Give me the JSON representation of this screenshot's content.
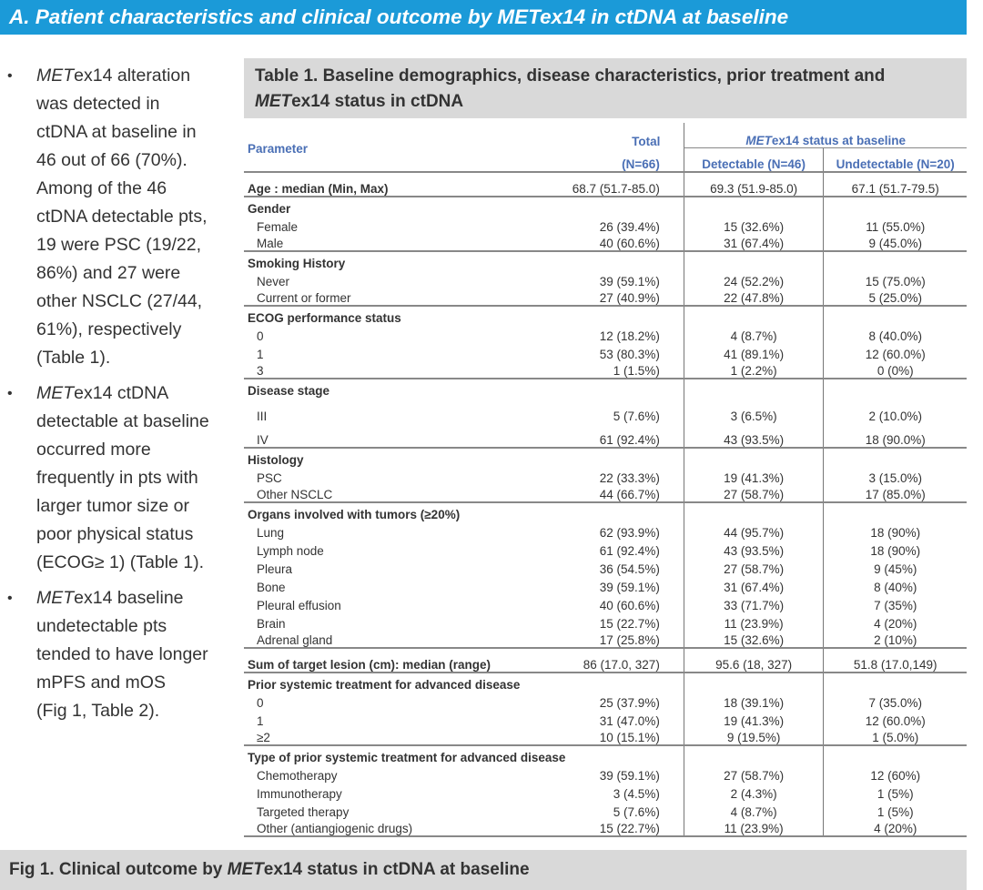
{
  "banner": {
    "title": "A. Patient characteristics and clinical outcome by METex14 in ctDNA at baseline"
  },
  "bullets": [
    {
      "italic": "MET",
      "lines": [
        "ex14 alteration",
        "was detected in",
        "ctDNA at baseline in",
        "46 out of 66 (70%).",
        "Among of the 46",
        "ctDNA detectable pts,",
        "19 were PSC (19/22,",
        "86%) and 27 were",
        "other NSCLC (27/44,",
        "61%), respectively",
        "(Table 1)."
      ]
    },
    {
      "italic": "MET",
      "lines": [
        "ex14 ctDNA",
        "detectable at baseline",
        "occurred more",
        "frequently in pts with",
        "larger tumor size or",
        "poor physical status",
        "(ECOG≥ 1) (Table 1)."
      ]
    },
    {
      "italic": "MET",
      "lines": [
        "ex14 baseline",
        "undetectable pts",
        "tended to have longer",
        "mPFS and mOS",
        "(Fig 1, Table 2)."
      ]
    }
  ],
  "table_title": {
    "before": "Table 1. Baseline demographics, disease characteristics, prior treatment and ",
    "italic": "MET",
    "after": "ex14 status in ctDNA"
  },
  "table_header": {
    "parameter": "Parameter",
    "total": "Total",
    "total_n": "(N=66)",
    "group_italic": "MET",
    "group": "ex14 status at baseline",
    "detectable": "Detectable (N=46)",
    "undetectable": "Undetectable (N=20)"
  },
  "table_sections": [
    {
      "title": "Age : median (Min, Max)",
      "values": [
        "68.7 (51.7-85.0)",
        "69.3 (51.9-85.0)",
        "67.1 (51.7-79.5)"
      ],
      "rows": []
    },
    {
      "title": "Gender",
      "rows": [
        [
          "Female",
          "26 (39.4%)",
          "15 (32.6%)",
          "11 (55.0%)"
        ],
        [
          "Male",
          "40 (60.6%)",
          "31 (67.4%)",
          "9 (45.0%)"
        ]
      ]
    },
    {
      "title": "Smoking History",
      "rows": [
        [
          "Never",
          "39 (59.1%)",
          "24 (52.2%)",
          "15 (75.0%)"
        ],
        [
          "Current or former",
          "27 (40.9%)",
          "22 (47.8%)",
          "5 (25.0%)"
        ]
      ]
    },
    {
      "title": "ECOG performance status",
      "rows": [
        [
          "0",
          "12 (18.2%)",
          "4 (8.7%)",
          "8 (40.0%)"
        ],
        [
          "1",
          "53 (80.3%)",
          "41 (89.1%)",
          "12 (60.0%)"
        ],
        [
          "3",
          "1 (1.5%)",
          "1 (2.2%)",
          "0 (0%)"
        ]
      ]
    },
    {
      "title": "Disease stage",
      "tall": true,
      "rows": [
        [
          "III",
          "5 (7.6%)",
          "3 (6.5%)",
          "2 (10.0%)"
        ],
        [
          "IV",
          "61 (92.4%)",
          "43 (93.5%)",
          "18 (90.0%)"
        ]
      ]
    },
    {
      "title": "Histology",
      "rows": [
        [
          "PSC",
          "22 (33.3%)",
          "19 (41.3%)",
          "3 (15.0%)"
        ],
        [
          "Other NSCLC",
          "44 (66.7%)",
          "27 (58.7%)",
          "17 (85.0%)"
        ]
      ]
    },
    {
      "title": "Organs involved with tumors (≥20%)",
      "rows": [
        [
          "Lung",
          "62 (93.9%)",
          "44 (95.7%)",
          "18 (90%)"
        ],
        [
          "Lymph node",
          "61 (92.4%)",
          "43 (93.5%)",
          "18 (90%)"
        ],
        [
          "Pleura",
          "36 (54.5%)",
          "27 (58.7%)",
          "9 (45%)"
        ],
        [
          "Bone",
          "39 (59.1%)",
          "31 (67.4%)",
          "8 (40%)"
        ],
        [
          "Pleural effusion",
          "40 (60.6%)",
          "33 (71.7%)",
          "7 (35%)"
        ],
        [
          "Brain",
          "15 (22.7%)",
          "11 (23.9%)",
          "4 (20%)"
        ],
        [
          "Adrenal gland",
          "17 (25.8%)",
          "15 (32.6%)",
          "2 (10%)"
        ]
      ]
    },
    {
      "title": "Sum of target lesion (cm): median (range)",
      "values": [
        "86 (17.0, 327)",
        "95.6 (18, 327)",
        "51.8 (17.0,149)"
      ],
      "rows": []
    },
    {
      "title": "Prior systemic treatment for advanced disease",
      "rows": [
        [
          "0",
          "25 (37.9%)",
          "18 (39.1%)",
          "7 (35.0%)"
        ],
        [
          "1",
          "31 (47.0%)",
          "19 (41.3%)",
          "12 (60.0%)"
        ],
        [
          "≥2",
          "10 (15.1%)",
          "9 (19.5%)",
          "1 (5.0%)"
        ]
      ]
    },
    {
      "title": "Type of prior systemic treatment for advanced disease",
      "rows": [
        [
          "Chemotherapy",
          "39 (59.1%)",
          "27 (58.7%)",
          "12 (60%)"
        ],
        [
          "Immunotherapy",
          "3 (4.5%)",
          "2 (4.3%)",
          "1 (5%)"
        ],
        [
          "Targeted therapy",
          "5 (7.6%)",
          "4 (8.7%)",
          "1 (5%)"
        ],
        [
          "Other (antiangiogenic drugs)",
          "15 (22.7%)",
          "11 (23.9%)",
          "4 (20%)"
        ]
      ]
    }
  ],
  "figure": {
    "before": "Fig 1. Clinical outcome by ",
    "italic": "MET",
    "after": "ex14 status in ctDNA at baseline"
  }
}
